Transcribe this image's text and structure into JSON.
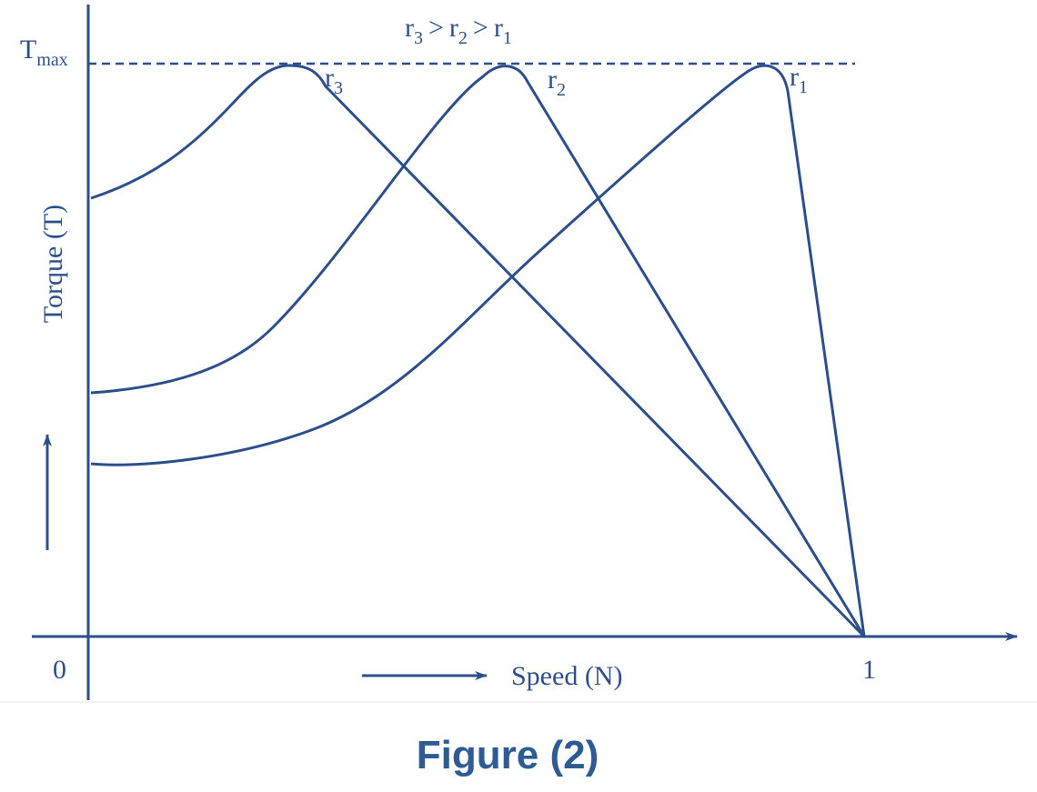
{
  "title": {
    "base": "T",
    "sub": "max"
  },
  "relation": [
    {
      "base": "r",
      "sub": "3"
    },
    ">",
    {
      "base": "r",
      "sub": "2"
    },
    ">",
    {
      "base": "r",
      "sub": "1"
    }
  ],
  "curves": [
    {
      "base": "r",
      "sub": "3"
    },
    {
      "base": "r",
      "sub": "2"
    },
    {
      "base": "r",
      "sub": "1"
    }
  ],
  "axes": {
    "y_label": "Torque (T)",
    "x_label": "Speed (N)",
    "origin": "0",
    "x_end": "1"
  },
  "caption": "Figure (2)"
}
